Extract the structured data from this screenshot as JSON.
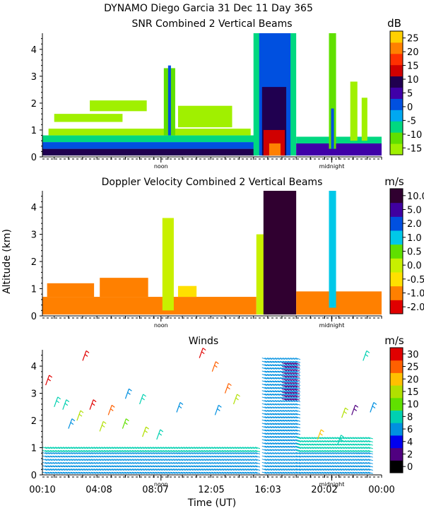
{
  "figure": {
    "title": "DYNAMO Diego Garcia  31 Dec 11 Day 365",
    "ylabel": "Altitude (km)",
    "xlabel": "Time (UT)",
    "time_tick_labels": [
      "00:10",
      "04:08",
      "08:07",
      "12:05",
      "16:03",
      "20:02",
      "00:00"
    ],
    "noon_label": "noon",
    "midnight_label": "midnight"
  },
  "colors": {
    "snr": [
      "#a0f000",
      "#60e000",
      "#00d880",
      "#00a8f0",
      "#0050e0",
      "#4000a8",
      "#200050",
      "#d00000",
      "#ff3000",
      "#ff8000",
      "#ffd000"
    ],
    "doppler": [
      "#e00000",
      "#ff8000",
      "#ffe000",
      "#c8f000",
      "#60e000",
      "#00c8e8",
      "#0050e0",
      "#4000a0",
      "#300030"
    ],
    "winds": [
      "#000000",
      "#500080",
      "#0000f0",
      "#0090e0",
      "#00d0b0",
      "#60e000",
      "#b0e000",
      "#ffc000",
      "#ff6000",
      "#e00000"
    ]
  },
  "chart_data": [
    {
      "type": "heatmap",
      "title": "SNR Combined 2 Vertical Beams",
      "xlabel": "",
      "ylabel": "",
      "xlim": [
        0.17,
        24.0
      ],
      "ylim": [
        0,
        4.6
      ],
      "yticks": [
        0,
        1,
        2,
        3,
        4
      ],
      "colorbar": {
        "unit": "dB",
        "ticks": [
          "25",
          "20",
          "15",
          "10",
          "5",
          "0",
          "-5",
          "-10",
          "-15"
        ],
        "range": [
          -17,
          30
        ]
      },
      "regions": [
        {
          "t0": 0.17,
          "t1": 15.3,
          "z0": 0.05,
          "z1": 0.3,
          "value": 12
        },
        {
          "t0": 0.17,
          "t1": 15.3,
          "z0": 0.3,
          "z1": 0.55,
          "value": 2
        },
        {
          "t0": 0.17,
          "t1": 15.3,
          "z0": 0.55,
          "z1": 0.8,
          "value": -5
        },
        {
          "t0": 0.6,
          "t1": 14.8,
          "z0": 0.8,
          "z1": 1.05,
          "value": -13
        },
        {
          "t0": 1.0,
          "t1": 5.8,
          "z0": 1.3,
          "z1": 1.6,
          "value": -14
        },
        {
          "t0": 3.5,
          "t1": 7.5,
          "z0": 1.7,
          "z1": 2.1,
          "value": -14
        },
        {
          "t0": 8.7,
          "t1": 9.5,
          "z0": 0.8,
          "z1": 3.3,
          "value": -12
        },
        {
          "t0": 9.0,
          "t1": 9.2,
          "z0": 0.8,
          "z1": 3.4,
          "value": 4
        },
        {
          "t0": 9.7,
          "t1": 13.5,
          "z0": 1.1,
          "z1": 1.9,
          "value": -14
        },
        {
          "t0": 15.0,
          "t1": 18.0,
          "z0": 0.05,
          "z1": 4.6,
          "value": -8
        },
        {
          "t0": 15.4,
          "t1": 17.6,
          "z0": 0.05,
          "z1": 4.6,
          "value": 2
        },
        {
          "t0": 15.6,
          "t1": 17.3,
          "z0": 0.05,
          "z1": 2.6,
          "value": 9
        },
        {
          "t0": 15.7,
          "t1": 17.2,
          "z0": 0.05,
          "z1": 1.0,
          "value": 16
        },
        {
          "t0": 16.1,
          "t1": 16.9,
          "z0": 0.05,
          "z1": 0.5,
          "value": 25
        },
        {
          "t0": 18.0,
          "t1": 24.0,
          "z0": 0.05,
          "z1": 0.5,
          "value": 8
        },
        {
          "t0": 18.0,
          "t1": 24.0,
          "z0": 0.5,
          "z1": 0.75,
          "value": -5
        },
        {
          "t0": 20.3,
          "t1": 20.8,
          "z0": 0.3,
          "z1": 4.6,
          "value": -12
        },
        {
          "t0": 20.45,
          "t1": 20.65,
          "z0": 0.3,
          "z1": 1.8,
          "value": 4
        },
        {
          "t0": 21.8,
          "t1": 22.3,
          "z0": 0.6,
          "z1": 2.8,
          "value": -14
        },
        {
          "t0": 22.6,
          "t1": 23.0,
          "z0": 0.6,
          "z1": 2.2,
          "value": -14
        }
      ]
    },
    {
      "type": "heatmap",
      "title": "Doppler Velocity Combined 2 Vertical Beams",
      "xlabel": "",
      "ylabel": "Altitude (km)",
      "xlim": [
        0.17,
        24.0
      ],
      "ylim": [
        0,
        4.6
      ],
      "yticks": [
        0,
        1,
        2,
        3,
        4
      ],
      "colorbar": {
        "unit": "m/s",
        "ticks": [
          "10.0",
          "5.0",
          "2.0",
          "1.0",
          "0.5",
          "0.0",
          "-0.5",
          "-1.0",
          "-2.0"
        ],
        "range": [
          -2.0,
          10.0
        ]
      },
      "regions": [
        {
          "t0": 0.17,
          "t1": 15.2,
          "z0": 0.05,
          "z1": 0.7,
          "value": -0.6
        },
        {
          "t0": 0.5,
          "t1": 3.8,
          "z0": 0.7,
          "z1": 1.2,
          "value": -0.2
        },
        {
          "t0": 4.2,
          "t1": 7.6,
          "z0": 0.7,
          "z1": 1.4,
          "value": 0.3
        },
        {
          "t0": 8.6,
          "t1": 9.4,
          "z0": 0.2,
          "z1": 3.6,
          "value": 2.0
        },
        {
          "t0": 9.7,
          "t1": 11.0,
          "z0": 0.7,
          "z1": 1.1,
          "value": 0.7
        },
        {
          "t0": 15.2,
          "t1": 16.1,
          "z0": 0.05,
          "z1": 3.0,
          "value": 2.0
        },
        {
          "t0": 15.7,
          "t1": 18.0,
          "z0": 0.05,
          "z1": 4.6,
          "value": 10.0
        },
        {
          "t0": 18.0,
          "t1": 24.0,
          "z0": 0.05,
          "z1": 0.9,
          "value": -0.3
        },
        {
          "t0": 20.3,
          "t1": 20.8,
          "z0": 0.3,
          "z1": 4.6,
          "value": 5.0
        }
      ]
    },
    {
      "type": "heatmap",
      "title": "Winds",
      "xlabel": "Time (UT)",
      "ylabel": "",
      "xlim": [
        0.17,
        24.0
      ],
      "ylim": [
        0,
        4.6
      ],
      "yticks": [
        0,
        1,
        2,
        3,
        4
      ],
      "colorbar": {
        "unit": "m/s",
        "ticks": [
          "30",
          "25",
          "20",
          "15",
          "10",
          "8",
          "6",
          "4",
          "2",
          "0"
        ],
        "range": [
          0,
          33
        ]
      },
      "regions": [
        {
          "t0": 0.17,
          "t1": 15.2,
          "z0": 0.1,
          "z1": 0.9,
          "value": 10
        },
        {
          "t0": 0.17,
          "t1": 15.2,
          "z0": 0.9,
          "z1": 1.05,
          "value": 14
        },
        {
          "t0": 15.6,
          "t1": 18.0,
          "z0": 0.1,
          "z1": 4.4,
          "value": 13
        },
        {
          "t0": 17.0,
          "t1": 18.0,
          "z0": 2.8,
          "z1": 4.2,
          "value": 4
        },
        {
          "t0": 18.0,
          "t1": 23.2,
          "z0": 0.1,
          "z1": 0.9,
          "value": 11
        },
        {
          "t0": 18.0,
          "t1": 23.2,
          "z0": 0.9,
          "z1": 1.5,
          "value": 14
        }
      ],
      "isolated_barbs": [
        {
          "t": 3.0,
          "z": 4.2,
          "value": 30
        },
        {
          "t": 11.2,
          "z": 4.3,
          "value": 30
        },
        {
          "t": 0.4,
          "z": 3.3,
          "value": 30
        },
        {
          "t": 12.1,
          "z": 3.8,
          "value": 28
        },
        {
          "t": 3.5,
          "z": 2.4,
          "value": 30
        },
        {
          "t": 4.8,
          "z": 2.2,
          "value": 28
        },
        {
          "t": 2.6,
          "z": 2.0,
          "value": 22
        },
        {
          "t": 4.2,
          "z": 1.6,
          "value": 20
        },
        {
          "t": 5.8,
          "z": 1.7,
          "value": 18
        },
        {
          "t": 7.2,
          "z": 1.4,
          "value": 20
        },
        {
          "t": 9.6,
          "z": 2.3,
          "value": 12
        },
        {
          "t": 12.3,
          "z": 2.2,
          "value": 12
        },
        {
          "t": 13.6,
          "z": 2.6,
          "value": 22
        },
        {
          "t": 13.0,
          "z": 3.0,
          "value": 28
        },
        {
          "t": 19.5,
          "z": 1.3,
          "value": 25
        },
        {
          "t": 20.9,
          "z": 1.1,
          "value": 16
        },
        {
          "t": 21.2,
          "z": 2.1,
          "value": 20
        },
        {
          "t": 21.9,
          "z": 2.2,
          "value": 6
        },
        {
          "t": 23.2,
          "z": 2.3,
          "value": 12
        },
        {
          "t": 22.7,
          "z": 4.2,
          "value": 16
        },
        {
          "t": 1.0,
          "z": 2.5,
          "value": 14
        },
        {
          "t": 1.6,
          "z": 2.4,
          "value": 16
        },
        {
          "t": 6.0,
          "z": 2.8,
          "value": 12
        },
        {
          "t": 7.0,
          "z": 2.6,
          "value": 14
        },
        {
          "t": 2.0,
          "z": 1.7,
          "value": 12
        },
        {
          "t": 8.2,
          "z": 1.3,
          "value": 16
        }
      ]
    }
  ]
}
